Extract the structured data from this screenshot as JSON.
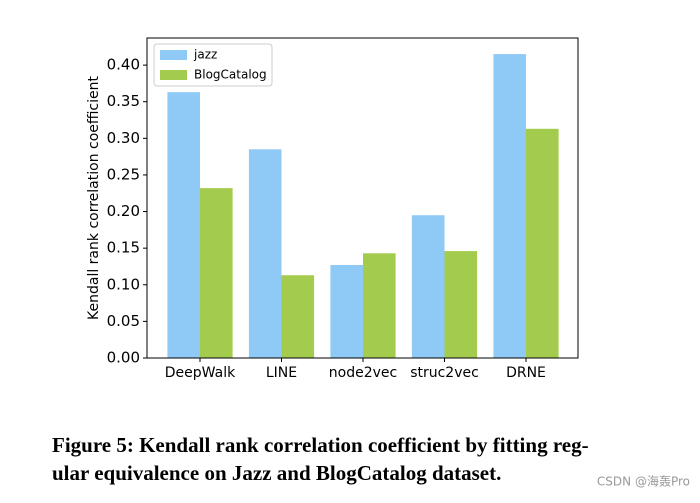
{
  "chart_data": {
    "type": "bar",
    "y_label": "Kendall rank correlation coefficient",
    "categories": [
      "DeepWalk",
      "LINE",
      "node2vec",
      "struc2vec",
      "DRNE"
    ],
    "series": [
      {
        "name": "jazz",
        "color": "#8ecaf5",
        "values": [
          0.363,
          0.285,
          0.127,
          0.195,
          0.415
        ]
      },
      {
        "name": "BlogCatalog",
        "color": "#a3cb4e",
        "values": [
          0.232,
          0.113,
          0.143,
          0.146,
          0.313
        ]
      }
    ],
    "ylim": [
      0,
      0.437
    ],
    "yticks": [
      {
        "value": 0,
        "label": "0.00"
      },
      {
        "value": 0.05,
        "label": "0.05"
      },
      {
        "value": 0.1,
        "label": "0.10"
      },
      {
        "value": 0.15,
        "label": "0.15"
      },
      {
        "value": 0.2,
        "label": "0.20"
      },
      {
        "value": 0.25,
        "label": "0.25"
      },
      {
        "value": 0.3,
        "label": "0.30"
      },
      {
        "value": 0.35,
        "label": "0.35"
      },
      {
        "value": 0.4,
        "label": "0.40"
      }
    ],
    "legend": "upper left"
  },
  "caption": {
    "lines": [
      "Figure 5: Kendall rank correlation coefficient by fitting reg-",
      "ular equivalence on Jazz and BlogCatalog dataset."
    ]
  },
  "watermark": "CSDN @海轰Pro"
}
